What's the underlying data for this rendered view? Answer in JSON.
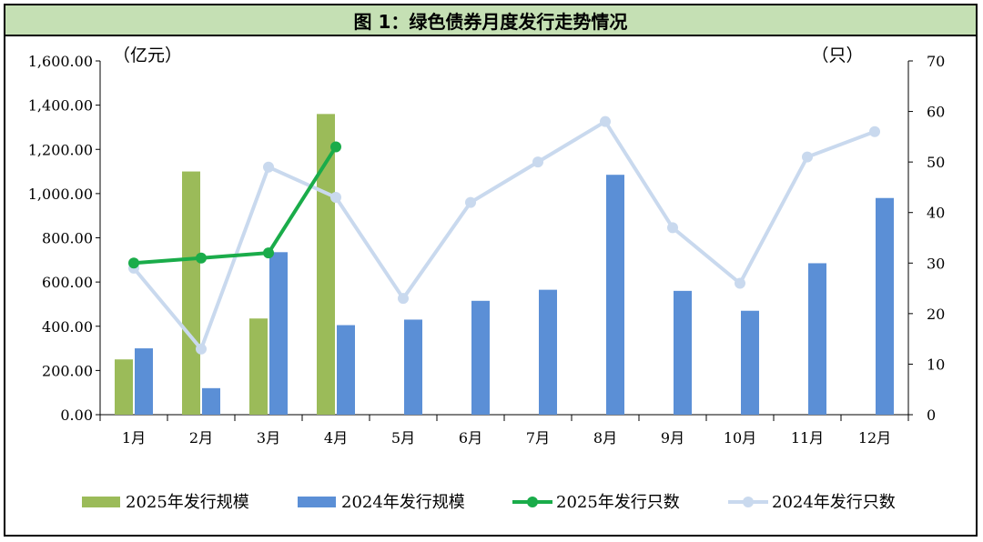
{
  "chart_data": {
    "type": "bar",
    "title": "图 1：绿色债券月度发行走势情况",
    "categories": [
      "1月",
      "2月",
      "3月",
      "4月",
      "5月",
      "6月",
      "7月",
      "8月",
      "9月",
      "10月",
      "11月",
      "12月"
    ],
    "y_left_label": "（亿元）",
    "y_right_label": "（只）",
    "y_left_lim": [
      0,
      1600
    ],
    "y_left_ticks": [
      "0.00",
      "200.00",
      "400.00",
      "600.00",
      "800.00",
      "1,000.00",
      "1,200.00",
      "1,400.00",
      "1,600.00"
    ],
    "y_right_lim": [
      0,
      70
    ],
    "y_right_ticks": [
      "0",
      "10",
      "20",
      "30",
      "40",
      "50",
      "60",
      "70"
    ],
    "grid": false,
    "legend_position": "bottom",
    "series": [
      {
        "name": "2025年发行规模",
        "kind": "bar",
        "axis": "left",
        "color": "#9bbb59",
        "values": [
          250,
          1100,
          435,
          1360,
          null,
          null,
          null,
          null,
          null,
          null,
          null,
          null
        ]
      },
      {
        "name": "2024年发行规模",
        "kind": "bar",
        "axis": "left",
        "color": "#5b8fd6",
        "values": [
          300,
          120,
          735,
          405,
          430,
          515,
          565,
          1085,
          560,
          470,
          685,
          980
        ]
      },
      {
        "name": "2025年发行只数",
        "kind": "line",
        "axis": "right",
        "color": "#1aac4a",
        "values": [
          30,
          31,
          32,
          53,
          null,
          null,
          null,
          null,
          null,
          null,
          null,
          null
        ]
      },
      {
        "name": "2024年发行只数",
        "kind": "line",
        "axis": "right",
        "color": "#c9d9ee",
        "values": [
          29,
          13,
          49,
          43,
          23,
          42,
          50,
          58,
          37,
          26,
          51,
          56
        ]
      }
    ]
  }
}
